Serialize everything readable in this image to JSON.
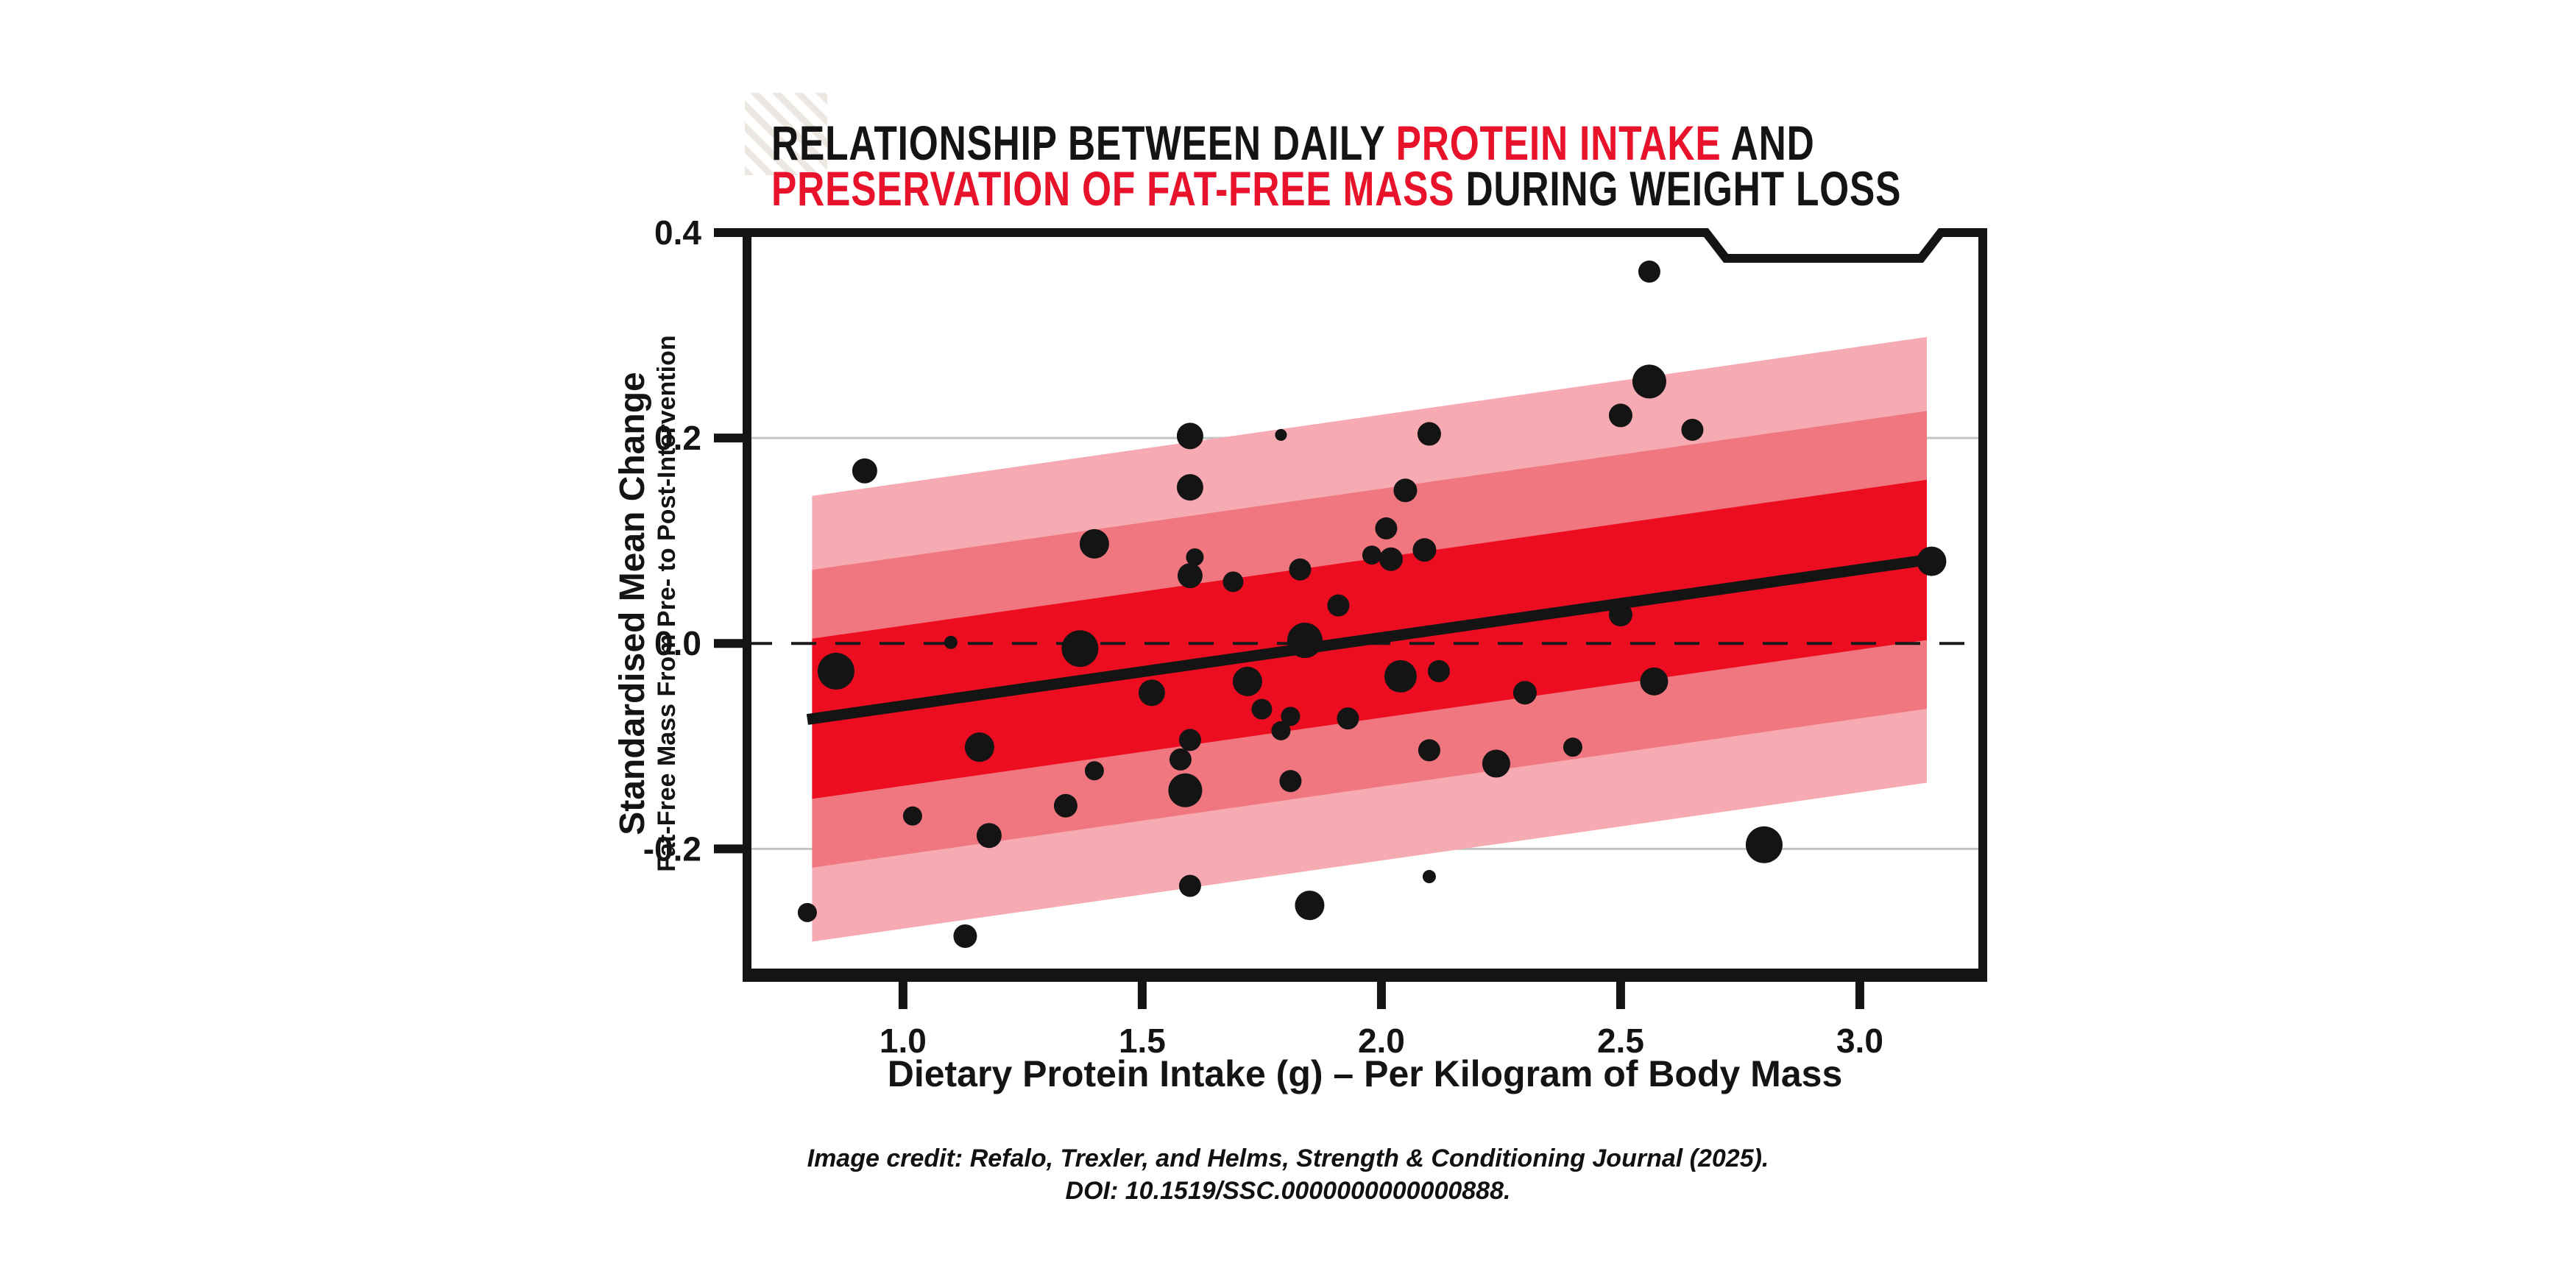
{
  "title": {
    "line1": [
      {
        "text": "RELATIONSHIP BETWEEN DAILY ",
        "color": "black"
      },
      {
        "text": "PROTEIN INTAKE",
        "color": "red"
      },
      {
        "text": " AND",
        "color": "black"
      }
    ],
    "line2": [
      {
        "text": "PRESERVATION OF FAT-FREE MASS",
        "color": "red"
      },
      {
        "text": " DURING WEIGHT LOSS",
        "color": "black"
      }
    ]
  },
  "credit": {
    "line1": "Image credit: Refalo, Trexler, and Helms, Strength & Conditioning Journal (2025).",
    "line2": "DOI: 10.1519/SSC.0000000000000888."
  },
  "colors": {
    "ink": "#141414",
    "title_red": "#e8132b",
    "band_inner": "#ec0d20",
    "band_mid": "#f0777f",
    "band_outer": "#f5abb1",
    "gridline": "#c4c4c4",
    "hatch": "#ece8e1"
  },
  "chart_data": {
    "type": "scatter",
    "title": "Relationship between daily protein intake and preservation of fat-free mass during weight loss",
    "xlabel": "Dietary Protein Intake (g) – Per Kilogram of Body Mass",
    "ylabel": "Standardised Mean Change",
    "ylabel_sub": "Fat-Free Mass From Pre- to Post-Intervention",
    "x_ticks": [
      "1.0",
      "1.5",
      "2.0",
      "2.5",
      "3.0"
    ],
    "x_tick_values": [
      1.0,
      1.5,
      2.0,
      2.5,
      3.0
    ],
    "y_ticks": [
      "0.4",
      "0.2",
      "0.0",
      "-0.2"
    ],
    "y_tick_values": [
      0.4,
      0.2,
      0.0,
      -0.2
    ],
    "xlim": [
      0.674,
      3.257
    ],
    "ylim": [
      -0.323,
      0.4
    ],
    "grid": "horizontal only, at 0.2 and -0.2",
    "legend": "none",
    "gridlines_y": [
      0.2,
      -0.2
    ],
    "zero_line_y": 0.0,
    "regression_line": {
      "x1": 0.8,
      "y1": -0.074,
      "x2": 3.15,
      "y2": 0.082
    },
    "confidence_bands": {
      "x_start": 0.81,
      "x_end": 3.14,
      "half_widths": [
        0.217,
        0.145,
        0.078
      ],
      "note": "three nested bands centered on the regression line, lightest is widest"
    },
    "points_format": "[protein_intake_g_per_kg, standardised_mean_change, marker_radius_px]",
    "points": [
      [
        0.8,
        -0.262,
        13
      ],
      [
        0.86,
        -0.027,
        25
      ],
      [
        0.92,
        0.168,
        17
      ],
      [
        1.02,
        -0.168,
        13
      ],
      [
        1.1,
        0.001,
        9
      ],
      [
        1.13,
        -0.285,
        16
      ],
      [
        1.16,
        -0.101,
        20
      ],
      [
        1.18,
        -0.187,
        17
      ],
      [
        1.34,
        -0.158,
        16
      ],
      [
        1.37,
        -0.005,
        25
      ],
      [
        1.4,
        0.097,
        20
      ],
      [
        1.4,
        -0.124,
        13
      ],
      [
        1.52,
        -0.048,
        18
      ],
      [
        1.6,
        0.202,
        18
      ],
      [
        1.6,
        0.152,
        18
      ],
      [
        1.61,
        0.084,
        12
      ],
      [
        1.6,
        0.066,
        17
      ],
      [
        1.69,
        0.06,
        14
      ],
      [
        1.6,
        -0.094,
        15
      ],
      [
        1.58,
        -0.113,
        15
      ],
      [
        1.59,
        -0.143,
        23
      ],
      [
        1.6,
        -0.236,
        15
      ],
      [
        1.72,
        -0.037,
        20
      ],
      [
        1.75,
        -0.064,
        14
      ],
      [
        1.79,
        -0.085,
        13
      ],
      [
        1.81,
        -0.071,
        13
      ],
      [
        1.81,
        -0.134,
        15
      ],
      [
        1.79,
        0.203,
        8
      ],
      [
        1.83,
        0.072,
        15
      ],
      [
        1.84,
        0.003,
        24
      ],
      [
        1.85,
        -0.255,
        20
      ],
      [
        1.91,
        0.037,
        15
      ],
      [
        1.93,
        -0.073,
        15
      ],
      [
        1.98,
        0.086,
        13
      ],
      [
        2.01,
        0.112,
        15
      ],
      [
        2.02,
        0.082,
        16
      ],
      [
        2.05,
        0.149,
        16
      ],
      [
        2.1,
        0.204,
        16
      ],
      [
        2.09,
        0.091,
        16
      ],
      [
        2.04,
        -0.032,
        22
      ],
      [
        2.12,
        -0.027,
        15
      ],
      [
        2.1,
        -0.104,
        15
      ],
      [
        2.1,
        -0.227,
        9
      ],
      [
        2.24,
        -0.117,
        19
      ],
      [
        2.3,
        -0.048,
        16
      ],
      [
        2.4,
        -0.101,
        13
      ],
      [
        2.5,
        0.222,
        16
      ],
      [
        2.5,
        0.028,
        16
      ],
      [
        2.56,
        0.362,
        15
      ],
      [
        2.56,
        0.255,
        23
      ],
      [
        2.57,
        -0.037,
        19
      ],
      [
        2.65,
        0.208,
        15
      ],
      [
        2.8,
        -0.196,
        25
      ],
      [
        3.15,
        0.08,
        20
      ]
    ]
  }
}
